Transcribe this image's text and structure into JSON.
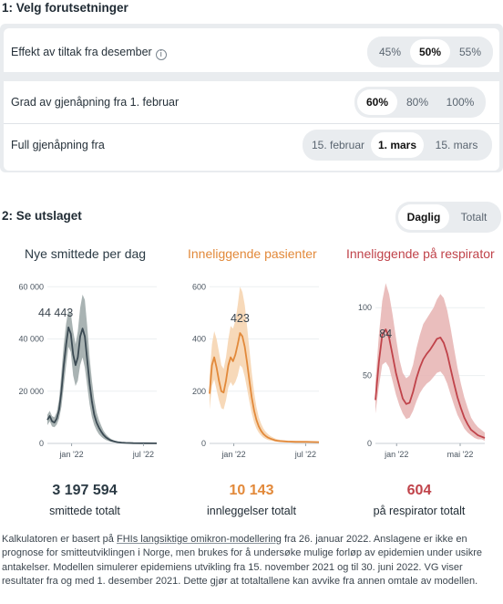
{
  "section1": {
    "title": "1: Velg forutsetninger",
    "rows": [
      {
        "label": "Effekt av tiltak fra desember",
        "options": [
          "45%",
          "50%",
          "55%"
        ],
        "selected": "50%"
      },
      {
        "label": "Grad av gjenåpning fra 1. februar",
        "options": [
          "60%",
          "80%",
          "100%"
        ],
        "selected": "60%"
      },
      {
        "label": "Full gjenåpning fra",
        "options": [
          "15. februar",
          "1. mars",
          "15. mars"
        ],
        "selected": "1. mars"
      }
    ],
    "info_icon": "i"
  },
  "section2": {
    "title": "2: Se utslaget",
    "view_options": [
      "Daglig",
      "Totalt"
    ],
    "view_selected": "Daglig"
  },
  "colors": {
    "cases": "#3b4a53",
    "cases_band": "#9aa6a6",
    "hosp": "#e2893a",
    "hosp_band": "#f6d2ad",
    "resp": "#c0434a",
    "resp_band": "#e6b3b1"
  },
  "chart_data": [
    {
      "type": "area",
      "title": "Nye smittede per dag",
      "ylim": [
        0,
        65000
      ],
      "yticks": [
        "0",
        "20 000",
        "40 000",
        "60 000"
      ],
      "ytick_values": [
        0,
        20000,
        40000,
        60000
      ],
      "xticks": [
        "jan '22",
        "jul '22"
      ],
      "xtick_positions": [
        31,
        123
      ],
      "x_range": [
        0,
        140
      ],
      "peak_label": "44 443",
      "peak_value": 44443,
      "x": [
        0,
        3,
        6,
        9,
        12,
        15,
        18,
        21,
        24,
        27,
        30,
        33,
        36,
        39,
        42,
        45,
        48,
        51,
        54,
        57,
        60,
        63,
        66,
        69,
        72,
        75,
        78,
        81,
        84,
        87,
        90,
        95,
        100,
        110,
        125,
        140
      ],
      "median": [
        9000,
        10500,
        8500,
        8000,
        9500,
        13000,
        20000,
        30000,
        38000,
        44443,
        42000,
        34000,
        30000,
        33000,
        41000,
        44000,
        41000,
        32000,
        23000,
        16000,
        11000,
        8000,
        6000,
        4500,
        3200,
        2300,
        1700,
        1200,
        900,
        650,
        480,
        300,
        200,
        120,
        60,
        30
      ],
      "upper": [
        11000,
        12500,
        10500,
        10000,
        12000,
        17000,
        27000,
        38000,
        46000,
        51000,
        50000,
        43000,
        38000,
        43000,
        52000,
        57000,
        55000,
        45000,
        33000,
        24000,
        17000,
        12000,
        9000,
        6800,
        4800,
        3500,
        2500,
        1800,
        1300,
        950,
        700,
        450,
        300,
        180,
        90,
        50
      ],
      "lower": [
        7000,
        8500,
        6500,
        6200,
        7200,
        9500,
        14000,
        22000,
        30000,
        37000,
        35000,
        26000,
        22000,
        24000,
        30000,
        33000,
        29000,
        22000,
        15000,
        10000,
        7000,
        5000,
        3500,
        2600,
        1800,
        1300,
        900,
        650,
        450,
        330,
        250,
        150,
        100,
        60,
        30,
        15
      ]
    },
    {
      "type": "area",
      "title": "Inneliggende pasienter",
      "ylim": [
        0,
        650
      ],
      "yticks": [
        "0",
        "200",
        "400",
        "600"
      ],
      "ytick_values": [
        0,
        200,
        400,
        600
      ],
      "xticks": [
        "jan '22",
        "jul '22"
      ],
      "xtick_positions": [
        31,
        123
      ],
      "x_range": [
        0,
        140
      ],
      "peak_label": "423",
      "peak_value": 423,
      "x": [
        0,
        3,
        6,
        9,
        12,
        15,
        18,
        21,
        24,
        27,
        30,
        33,
        36,
        39,
        42,
        45,
        48,
        51,
        54,
        57,
        60,
        63,
        66,
        69,
        72,
        75,
        78,
        81,
        84,
        87,
        90,
        95,
        100,
        110,
        125,
        140
      ],
      "median": [
        190,
        300,
        330,
        290,
        240,
        200,
        195,
        240,
        300,
        330,
        315,
        340,
        380,
        423,
        410,
        370,
        310,
        240,
        175,
        125,
        90,
        65,
        48,
        36,
        28,
        22,
        18,
        15,
        12,
        10,
        9,
        8,
        7,
        6,
        6,
        5
      ],
      "upper": [
        260,
        380,
        430,
        400,
        350,
        300,
        285,
        330,
        400,
        450,
        440,
        470,
        530,
        600,
        580,
        530,
        450,
        360,
        270,
        195,
        140,
        100,
        75,
        57,
        44,
        35,
        28,
        23,
        19,
        16,
        14,
        12,
        11,
        10,
        9,
        8
      ],
      "lower": [
        130,
        220,
        245,
        205,
        165,
        135,
        130,
        165,
        215,
        235,
        220,
        235,
        260,
        300,
        290,
        255,
        210,
        160,
        115,
        80,
        57,
        41,
        30,
        22,
        17,
        13,
        11,
        9,
        7,
        6,
        5,
        5,
        4,
        4,
        3,
        3
      ]
    },
    {
      "type": "area",
      "title": "Inneliggende på respirator",
      "ylim": [
        0,
        125
      ],
      "yticks": [
        "0",
        "50",
        "100"
      ],
      "ytick_values": [
        0,
        50,
        100
      ],
      "xticks": [
        "jan '22",
        "mai '22"
      ],
      "xtick_positions": [
        31,
        124
      ],
      "x_range": [
        0,
        160
      ],
      "peak_label": "84",
      "peak_value": 84,
      "x": [
        0,
        5,
        10,
        15,
        20,
        25,
        30,
        35,
        40,
        45,
        50,
        55,
        60,
        65,
        70,
        75,
        80,
        85,
        90,
        95,
        100,
        105,
        110,
        115,
        120,
        125,
        130,
        135,
        140,
        145,
        150,
        155,
        160
      ],
      "median": [
        32,
        60,
        80,
        84,
        78,
        65,
        52,
        42,
        33,
        29,
        30,
        38,
        48,
        56,
        62,
        66,
        69,
        73,
        77,
        78,
        74,
        66,
        55,
        44,
        34,
        26,
        19,
        14,
        10,
        8,
        6,
        5,
        4
      ],
      "upper": [
        45,
        80,
        105,
        118,
        110,
        95,
        78,
        62,
        52,
        48,
        50,
        58,
        70,
        80,
        88,
        92,
        96,
        100,
        106,
        110,
        107,
        98,
        85,
        70,
        56,
        44,
        34,
        26,
        19,
        15,
        12,
        10,
        8
      ],
      "lower": [
        22,
        42,
        58,
        60,
        56,
        46,
        36,
        28,
        22,
        18,
        19,
        24,
        31,
        37,
        41,
        44,
        46,
        49,
        52,
        53,
        50,
        44,
        36,
        28,
        21,
        16,
        11,
        8,
        6,
        4,
        3,
        3,
        2
      ]
    }
  ],
  "totals": [
    {
      "value": "3 197 594",
      "label": "smittede totalt"
    },
    {
      "value": "10 143",
      "label": "innleggelser totalt"
    },
    {
      "value": "604",
      "label": "på respirator totalt"
    }
  ],
  "footnote": {
    "before_link": "Kalkulatoren er basert på ",
    "link_text": "FHIs langsiktige omikron-modellering",
    "after_link": " fra 26. januar 2022. Anslagene er ikke en prognose for smitteutviklingen i Norge, men brukes for å undersøke mulige forløp av epidemien under usikre antakelser. Modellen simulerer epidemiens utvikling fra 15. november 2021 og til 30. juni 2022. VG viser resultater fra og med 1. desember 2021. Dette gjør at totaltallene kan avvike fra annen omtale av modellen."
  }
}
